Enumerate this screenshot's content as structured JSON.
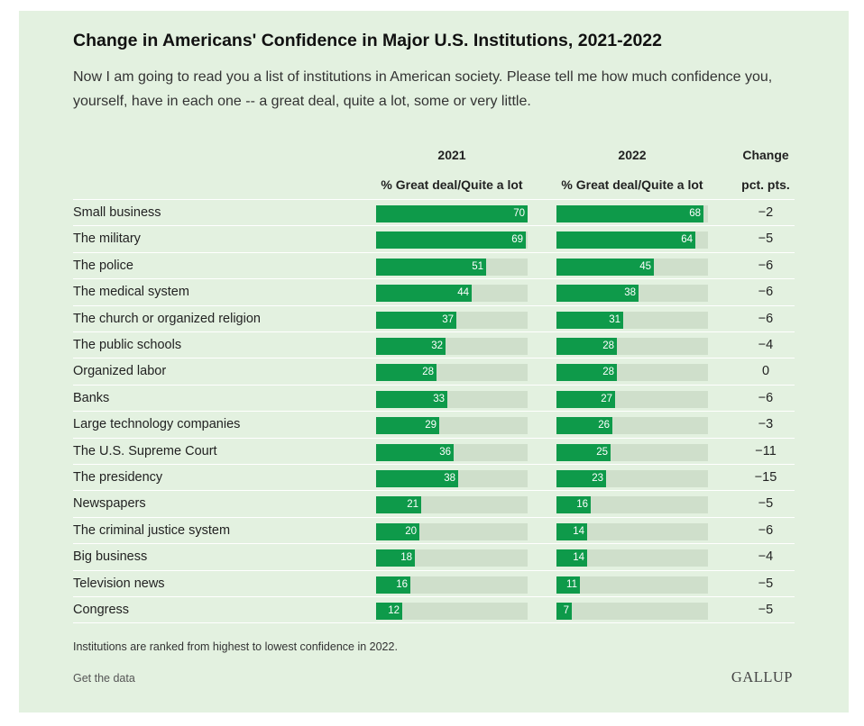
{
  "header": {
    "title": "Change in Americans' Confidence in Major U.S. Institutions, 2021-2022",
    "subtitle": "Now I am going to read you a list of institutions in American society. Please tell me how much confidence you, yourself, have in each one -- a great deal, quite a lot, some or very little."
  },
  "columns": {
    "y2021": "2021",
    "y2022": "2022",
    "change": "Change",
    "measure_2021": "% Great deal/Quite a lot",
    "measure_2022": "% Great deal/Quite a lot",
    "change_unit": "pct. pts."
  },
  "colors": {
    "card_bg": "#e3f1e0",
    "bar_fill": "#0e9a4a",
    "bar_track": "#cfdfcb"
  },
  "chart_data": {
    "type": "table",
    "title": "Change in Americans' Confidence in Major U.S. Institutions, 2021-2022",
    "xlim": [
      0,
      70
    ],
    "categories": [
      "Small business",
      "The military",
      "The police",
      "The medical system",
      "The church or organized religion",
      "The public schools",
      "Organized labor",
      "Banks",
      "Large technology companies",
      "The U.S. Supreme Court",
      "The presidency",
      "Newspapers",
      "The criminal justice system",
      "Big business",
      "Television news",
      "Congress"
    ],
    "series": [
      {
        "name": "2021",
        "values": [
          70,
          69,
          51,
          44,
          37,
          32,
          28,
          33,
          29,
          36,
          38,
          21,
          20,
          18,
          16,
          12
        ]
      },
      {
        "name": "2022",
        "values": [
          68,
          64,
          45,
          38,
          31,
          28,
          28,
          27,
          26,
          25,
          23,
          16,
          14,
          14,
          11,
          7
        ]
      }
    ],
    "change": [
      "−2",
      "−5",
      "−6",
      "−6",
      "−6",
      "−4",
      "0",
      "−6",
      "−3",
      "−11",
      "−15",
      "−5",
      "−6",
      "−4",
      "−5",
      "−5"
    ]
  },
  "footer": {
    "note": "Institutions are ranked from highest to lowest confidence in 2022.",
    "data_link": "Get the data",
    "logo": "GALLUP"
  }
}
